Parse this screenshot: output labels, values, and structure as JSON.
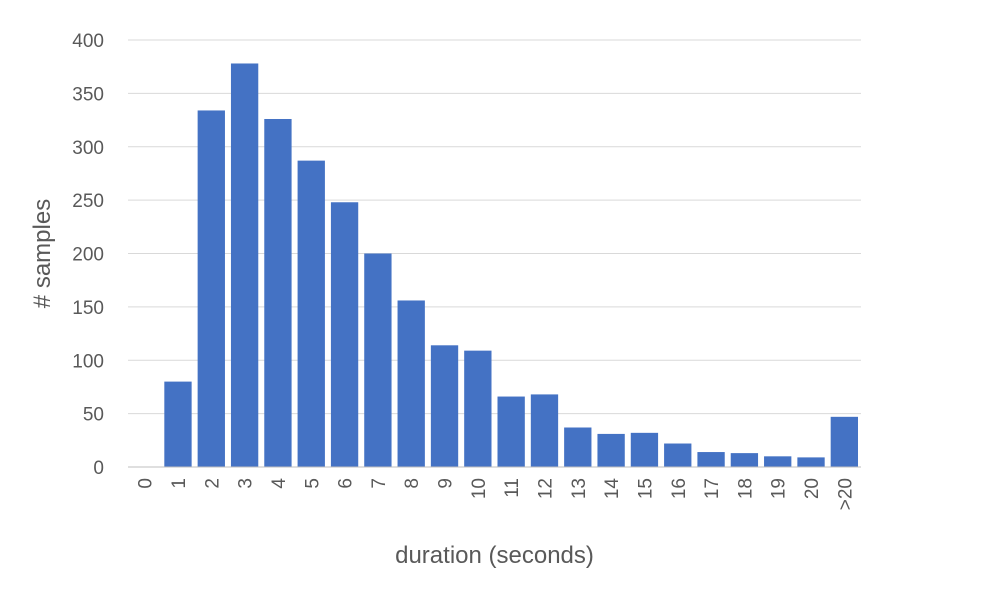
{
  "chart_data": {
    "type": "bar",
    "title": "",
    "xlabel": "duration (seconds)",
    "ylabel": "# samples",
    "ylim": [
      0,
      400
    ],
    "y_ticks": [
      "0",
      "50",
      "100",
      "150",
      "200",
      "250",
      "300",
      "350",
      "400"
    ],
    "grid": true,
    "legend": "none",
    "bar_color": "#4472C4",
    "categories": [
      "0",
      "1",
      "2",
      "3",
      "4",
      "5",
      "6",
      "7",
      "8",
      "9",
      "10",
      "11",
      "12",
      "13",
      "14",
      "15",
      "16",
      "17",
      "18",
      "19",
      "20",
      ">20"
    ],
    "values": [
      0,
      80,
      334,
      378,
      326,
      287,
      248,
      200,
      156,
      114,
      109,
      66,
      68,
      37,
      31,
      32,
      22,
      14,
      13,
      10,
      9,
      47
    ]
  }
}
